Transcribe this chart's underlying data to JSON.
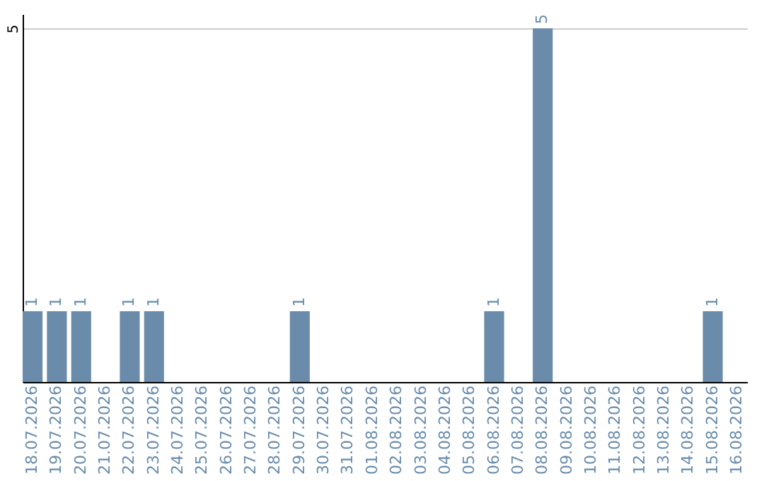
{
  "chart_data": {
    "type": "bar",
    "categories": [
      "18.07.2026",
      "19.07.2026",
      "20.07.2026",
      "21.07.2026",
      "22.07.2026",
      "23.07.2026",
      "24.07.2026",
      "25.07.2026",
      "26.07.2026",
      "27.07.2026",
      "28.07.2026",
      "29.07.2026",
      "30.07.2026",
      "31.07.2026",
      "01.08.2026",
      "02.08.2026",
      "03.08.2026",
      "04.08.2026",
      "05.08.2026",
      "06.08.2026",
      "07.08.2026",
      "08.08.2026",
      "09.08.2026",
      "10.08.2026",
      "11.08.2026",
      "12.08.2026",
      "13.08.2026",
      "14.08.2026",
      "15.08.2026",
      "16.08.2026"
    ],
    "values": [
      1,
      1,
      1,
      0,
      1,
      1,
      0,
      0,
      0,
      0,
      0,
      1,
      0,
      0,
      0,
      0,
      0,
      0,
      0,
      1,
      0,
      5,
      0,
      0,
      0,
      0,
      0,
      0,
      1,
      0
    ],
    "value_labels": [
      "1",
      "1",
      "1",
      null,
      "1",
      "1",
      null,
      null,
      null,
      null,
      null,
      "1",
      null,
      null,
      null,
      null,
      null,
      null,
      null,
      "1",
      null,
      "5",
      null,
      null,
      null,
      null,
      null,
      null,
      "1",
      null
    ],
    "color": "#6a8caa",
    "ylim": [
      0,
      5.2
    ],
    "yticks": [
      5
    ],
    "grid": "y"
  }
}
